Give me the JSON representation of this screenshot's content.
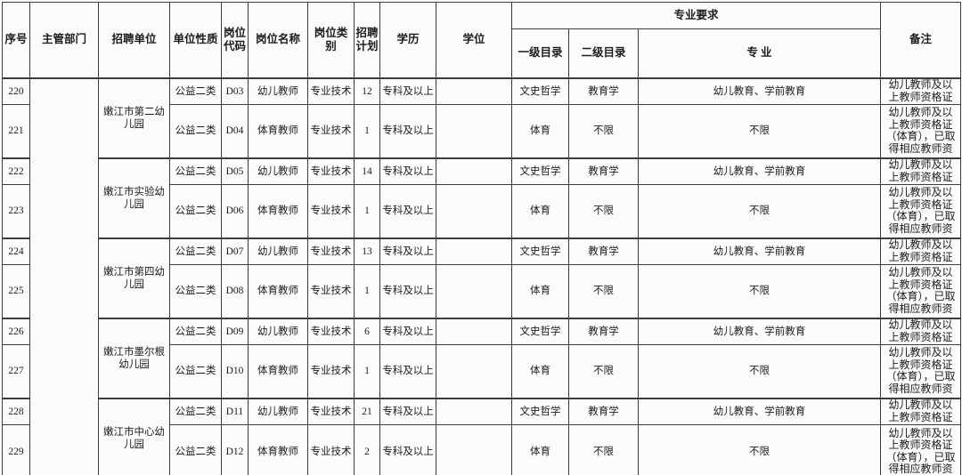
{
  "table": {
    "header": {
      "serial": "序号",
      "department": "主管部门",
      "unit": "招聘单位",
      "nature": "单位性质",
      "code": "岗位代码",
      "title": "岗位名称",
      "category": "岗位类别",
      "plan": "招聘计划",
      "education": "学历",
      "degree": "学位",
      "major_requirements": "专业要求",
      "level1": "一级目录",
      "level2": "二级目录",
      "major": "专 业",
      "remark": "备注"
    },
    "department_value": "",
    "groups": [
      {
        "unit": "嫩江市第二幼儿园",
        "rows": [
          {
            "serial": "220",
            "nature": "公益二类",
            "code": "D03",
            "title": "幼儿教师",
            "category": "专业技术",
            "plan": "12",
            "education": "专科及以上",
            "degree": "",
            "cat1": "文史哲学",
            "cat2": "教育学",
            "major": "幼儿教育、学前教育",
            "remark": "幼儿教师及以上教师资格证"
          },
          {
            "serial": "221",
            "nature": "公益二类",
            "code": "D04",
            "title": "体育教师",
            "category": "专业技术",
            "plan": "1",
            "education": "专科及以上",
            "degree": "",
            "cat1": "体育",
            "cat2": "不限",
            "major": "不限",
            "remark": "幼儿教师及以上教师资格证（体育），已取得相应教师资"
          }
        ]
      },
      {
        "unit": "嫩江市实验幼儿园",
        "rows": [
          {
            "serial": "222",
            "nature": "公益二类",
            "code": "D05",
            "title": "幼儿教师",
            "category": "专业技术",
            "plan": "14",
            "education": "专科及以上",
            "degree": "",
            "cat1": "文史哲学",
            "cat2": "教育学",
            "major": "幼儿教育、学前教育",
            "remark": "幼儿教师及以上教师资格证"
          },
          {
            "serial": "223",
            "nature": "公益二类",
            "code": "D06",
            "title": "体育教师",
            "category": "专业技术",
            "plan": "1",
            "education": "专科及以上",
            "degree": "",
            "cat1": "体育",
            "cat2": "不限",
            "major": "不限",
            "remark": "幼儿教师及以上教师资格证（体育），已取得相应教师资"
          }
        ]
      },
      {
        "unit": "嫩江市第四幼儿园",
        "rows": [
          {
            "serial": "224",
            "nature": "公益二类",
            "code": "D07",
            "title": "幼儿教师",
            "category": "专业技术",
            "plan": "13",
            "education": "专科及以上",
            "degree": "",
            "cat1": "文史哲学",
            "cat2": "教育学",
            "major": "幼儿教育、学前教育",
            "remark": "幼儿教师及以上教师资格证"
          },
          {
            "serial": "225",
            "nature": "公益二类",
            "code": "D08",
            "title": "体育教师",
            "category": "专业技术",
            "plan": "1",
            "education": "专科及以上",
            "degree": "",
            "cat1": "体育",
            "cat2": "不限",
            "major": "不限",
            "remark": "幼儿教师及以上教师资格证（体育），已取得相应教师资"
          }
        ]
      },
      {
        "unit": "嫩江市墨尔根幼儿园",
        "rows": [
          {
            "serial": "226",
            "nature": "公益二类",
            "code": "D09",
            "title": "幼儿教师",
            "category": "专业技术",
            "plan": "6",
            "education": "专科及以上",
            "degree": "",
            "cat1": "文史哲学",
            "cat2": "教育学",
            "major": "幼儿教育、学前教育",
            "remark": "幼儿教师及以上教师资格证"
          },
          {
            "serial": "227",
            "nature": "公益二类",
            "code": "D10",
            "title": "体育教师",
            "category": "专业技术",
            "plan": "1",
            "education": "专科及以上",
            "degree": "",
            "cat1": "体育",
            "cat2": "不限",
            "major": "不限",
            "remark": "幼儿教师及以上教师资格证（体育），已取得相应教师资"
          }
        ]
      },
      {
        "unit": "嫩江市中心幼儿园",
        "rows": [
          {
            "serial": "228",
            "nature": "公益二类",
            "code": "D11",
            "title": "幼儿教师",
            "category": "专业技术",
            "plan": "21",
            "education": "专科及以上",
            "degree": "",
            "cat1": "文史哲学",
            "cat2": "教育学",
            "major": "幼儿教育、学前教育",
            "remark": "幼儿教师及以上教师资格证"
          },
          {
            "serial": "229",
            "nature": "公益二类",
            "code": "D12",
            "title": "体育教师",
            "category": "专业技术",
            "plan": "2",
            "education": "专科及以上",
            "degree": "",
            "cat1": "体育",
            "cat2": "不限",
            "major": "不限",
            "remark": "幼儿教师及以上教师资格证（体育），已取得相应教师资"
          }
        ]
      }
    ]
  }
}
